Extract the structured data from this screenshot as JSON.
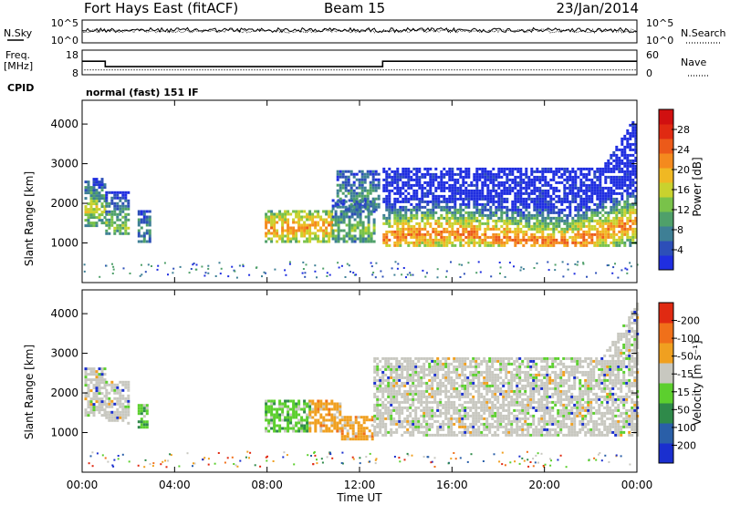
{
  "header": {
    "station": "Fort Hays East (fitACF)",
    "beam": "Beam 15",
    "date": "23/Jan/2014"
  },
  "noise_panel": {
    "left_label": "N.Sky",
    "right_label": "N.Search",
    "left_ticks": [
      "10^5",
      "10^0"
    ],
    "right_ticks": [
      "10^5",
      "10^0"
    ]
  },
  "freq_panel": {
    "left_label_1": "Freq.",
    "left_label_2": "[MHz]",
    "right_label": "Nave",
    "left_ticks": [
      "18",
      "8"
    ],
    "right_ticks": [
      "60",
      "0"
    ],
    "cpid_label": "CPID",
    "mode_text": "normal (fast) 151 IF",
    "freq_steps": [
      {
        "t": 0,
        "v": 13.5
      },
      {
        "t": 1.0,
        "v": 11.3
      },
      {
        "t": 13.0,
        "v": 13.5
      },
      {
        "t": 24.0,
        "v": 13.5
      }
    ],
    "nave_level": 12
  },
  "chart_data": [
    {
      "type": "heatmap",
      "title": "",
      "xlabel": "Time UT",
      "ylabel": "Slant Range [km]",
      "xlim": [
        0,
        24
      ],
      "ylim": [
        0,
        4600
      ],
      "yticks": [
        1000,
        2000,
        3000,
        4000
      ],
      "xticks": [
        "00:00",
        "04:00",
        "08:00",
        "12:00",
        "16:00",
        "20:00",
        "00:00"
      ],
      "colorbar": {
        "label": "Power [dB]",
        "ticks": [
          "4",
          "8",
          "12",
          "16",
          "20",
          "24",
          "28"
        ],
        "colors": [
          "#1f2ee0",
          "#2d4fb8",
          "#3e7f95",
          "#4fa06a",
          "#79c24a",
          "#c9d22e",
          "#f0b823",
          "#f48a1e",
          "#ec5a19",
          "#e02a12",
          "#d11010"
        ]
      },
      "regions": [
        {
          "t0": 0.1,
          "t1": 1.0,
          "r0": 1400,
          "r1": 2600,
          "core": 1800,
          "level": 0.55
        },
        {
          "t0": 1.0,
          "t1": 2.0,
          "r0": 1200,
          "r1": 2300,
          "core": 1450,
          "level": 0.45
        },
        {
          "t0": 2.4,
          "t1": 2.9,
          "r0": 1000,
          "r1": 1800,
          "core": 1300,
          "level": 0.3
        },
        {
          "t0": 7.9,
          "t1": 10.8,
          "r0": 1000,
          "r1": 1800,
          "core": 1350,
          "level": 0.75
        },
        {
          "t0": 10.8,
          "t1": 12.6,
          "r0": 1000,
          "r1": 2100,
          "core": 1300,
          "level": 0.45
        },
        {
          "t0": 11.0,
          "t1": 12.8,
          "r0": 1800,
          "r1": 2800,
          "core": 2200,
          "level": 0.3
        },
        {
          "t0": 13.0,
          "t1": 24.0,
          "r0": 900,
          "r1": 2900,
          "core": 1100,
          "level": 0.8
        }
      ]
    },
    {
      "type": "heatmap",
      "title": "",
      "xlabel": "Time UT",
      "ylabel": "Slant Range [km]",
      "xlim": [
        0,
        24
      ],
      "ylim": [
        0,
        4600
      ],
      "yticks": [
        1000,
        2000,
        3000,
        4000
      ],
      "xticks": [
        "00:00",
        "04:00",
        "08:00",
        "12:00",
        "16:00",
        "20:00",
        "00:00"
      ],
      "colorbar": {
        "label": "Velocity [m s⁻¹]",
        "ticks": [
          "200",
          "100",
          "50",
          "15",
          "-15",
          "-50",
          "-100",
          "-200"
        ],
        "colors": [
          "#1a2fcf",
          "#2a5fa8",
          "#2f8a4a",
          "#5ccf2e",
          "#c8c8c0",
          "#f0a020",
          "#f0701a",
          "#e02a12"
        ]
      },
      "regions": [
        {
          "t0": 0.1,
          "t1": 1.0,
          "r0": 1400,
          "r1": 2600,
          "kind": "grey"
        },
        {
          "t0": 1.0,
          "t1": 2.0,
          "r0": 1200,
          "r1": 2300,
          "kind": "grey"
        },
        {
          "t0": 2.4,
          "t1": 2.8,
          "r0": 1100,
          "r1": 1700,
          "kind": "green"
        },
        {
          "t0": 7.9,
          "t1": 9.8,
          "r0": 1000,
          "r1": 1800,
          "kind": "green"
        },
        {
          "t0": 9.8,
          "t1": 11.2,
          "r0": 1000,
          "r1": 1800,
          "kind": "orange"
        },
        {
          "t0": 11.2,
          "t1": 12.6,
          "r0": 800,
          "r1": 1400,
          "kind": "orange"
        },
        {
          "t0": 12.6,
          "t1": 24.0,
          "r0": 900,
          "r1": 2900,
          "kind": "grey"
        }
      ]
    }
  ]
}
